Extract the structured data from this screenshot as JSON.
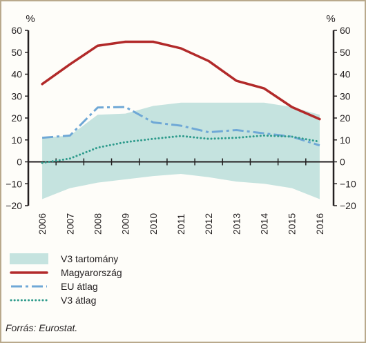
{
  "chart_data": {
    "type": "line",
    "unit_left": "%",
    "unit_right": "%",
    "x": [
      "2006",
      "2007",
      "2008",
      "2009",
      "2010",
      "2011",
      "2012",
      "2013",
      "2014",
      "2015",
      "2016"
    ],
    "ylim": [
      -20,
      60
    ],
    "yticks": [
      -20,
      -10,
      0,
      10,
      20,
      30,
      40,
      50,
      60
    ],
    "ytick_labels": [
      "−20",
      "−10",
      "0",
      "10",
      "20",
      "30",
      "40",
      "50",
      "60"
    ],
    "range_band": {
      "name": "V3 tartomány",
      "color": "#c5e3df",
      "upper": [
        11,
        12,
        21.5,
        22,
        25.5,
        27,
        27,
        27,
        27,
        25,
        21.5
      ],
      "lower": [
        -17,
        -12,
        -9.5,
        -8,
        -6.5,
        -5.5,
        -7,
        -9,
        -10,
        -12,
        -17
      ]
    },
    "series": [
      {
        "name": "Magyarország",
        "color": "#b22a2a",
        "style": "solid",
        "values": [
          35.5,
          44.5,
          53,
          54.8,
          54.8,
          51.8,
          46,
          37,
          33.5,
          25,
          19.5
        ]
      },
      {
        "name": "EU átlag",
        "color": "#6fa8d6",
        "style": "dashed",
        "values": [
          11,
          12,
          24.8,
          25,
          18,
          16.5,
          13.5,
          14.5,
          13,
          11.5,
          7.5
        ]
      },
      {
        "name": "V3 átlag",
        "color": "#2e9b8c",
        "style": "dotted",
        "values": [
          -0.5,
          1.5,
          6.5,
          9,
          10.5,
          11.8,
          10.5,
          11,
          12,
          11.5,
          9.2
        ]
      }
    ],
    "grid": false,
    "legend_position": "bottom-left"
  },
  "legend": [
    {
      "kind": "band",
      "label": "V3 tartomány",
      "color": "#c5e3df"
    },
    {
      "kind": "solid",
      "label": "Magyarország",
      "color": "#b22a2a"
    },
    {
      "kind": "dashed",
      "label": "EU átlag",
      "color": "#6fa8d6"
    },
    {
      "kind": "dotted",
      "label": "V3 átlag",
      "color": "#2e9b8c"
    }
  ],
  "source": "Forrás: Eurostat."
}
